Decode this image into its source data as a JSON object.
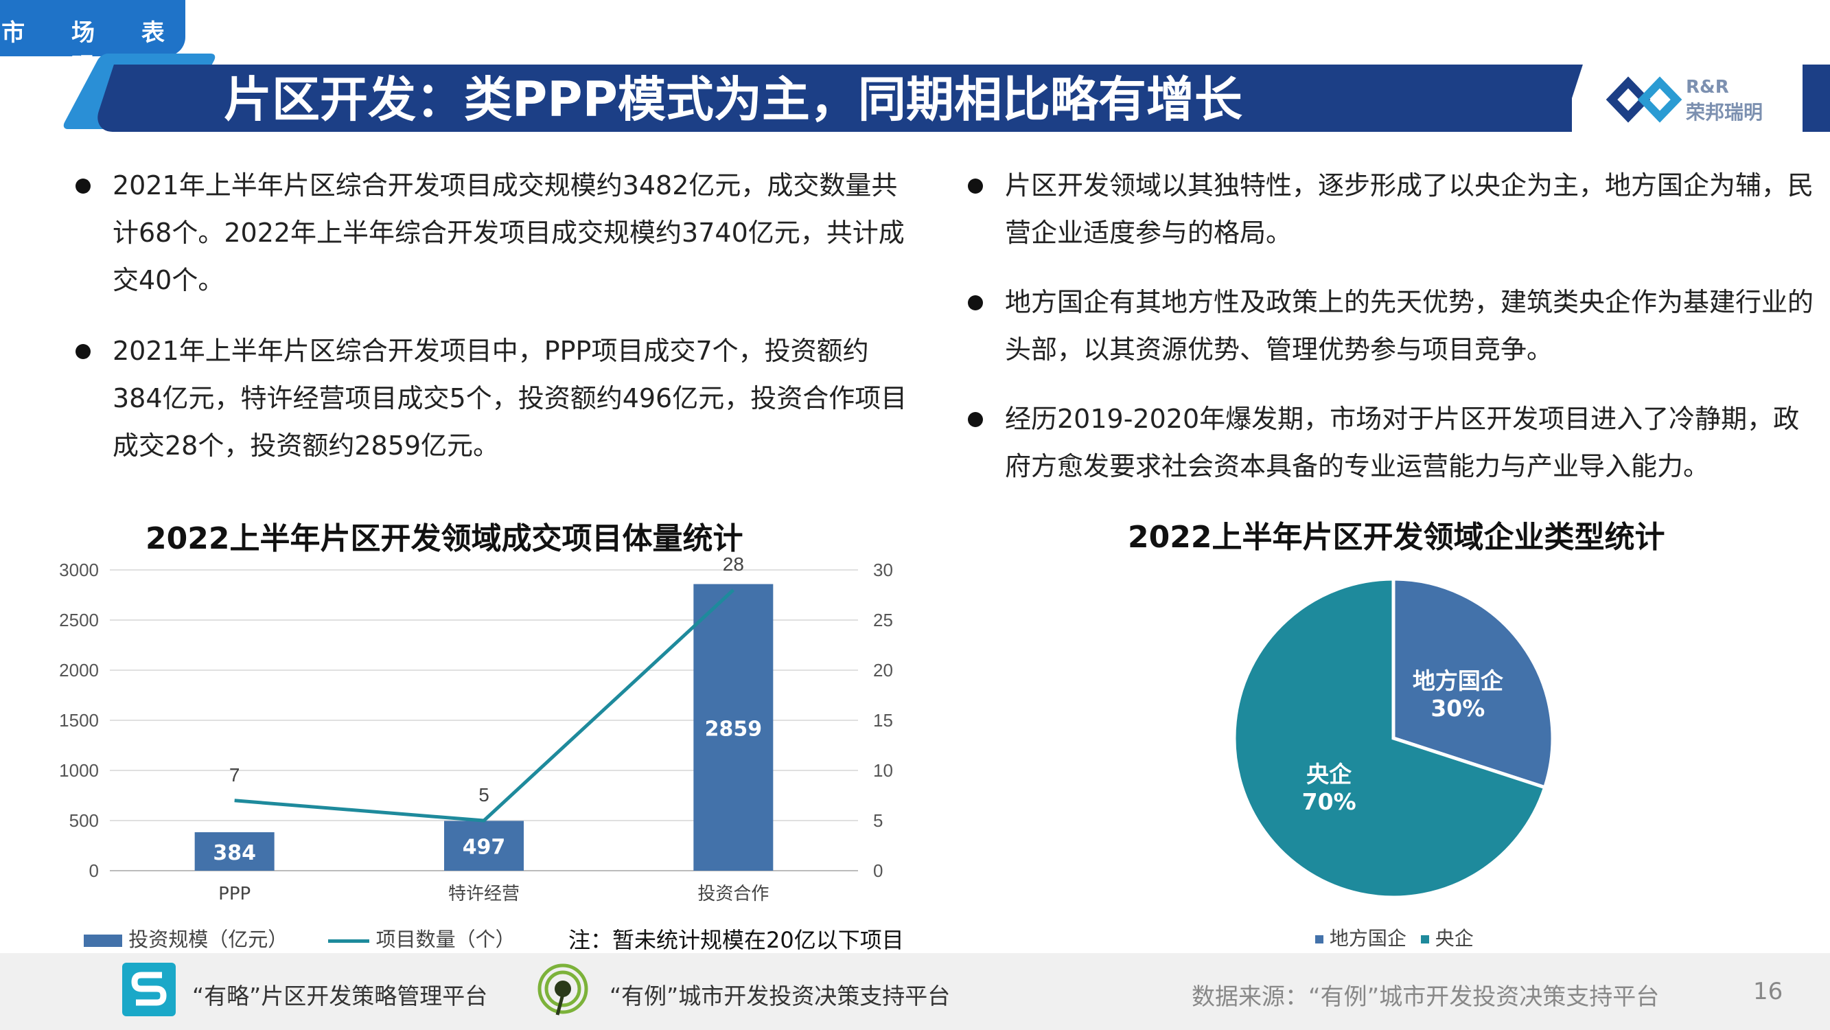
{
  "section_tag": "市 场 表 现",
  "title": "片区开发：类PPP模式为主，同期相比略有增长",
  "logo": {
    "en": "R&R",
    "cn": "荣邦瑞明"
  },
  "left_bullets": [
    "2021年上半年片区综合开发项目成交规模约3482亿元，成交数量共计68个。2022年上半年综合开发项目成交规模约3740亿元，共计成交40个。",
    "2021年上半年片区综合开发项目中，PPP项目成交7个，投资额约384亿元，特许经营项目成交5个，投资额约496亿元，投资合作项目成交28个，投资额约2859亿元。"
  ],
  "right_bullets": [
    "片区开发领域以其独特性，逐步形成了以央企为主，地方国企为辅，民营企业适度参与的格局。",
    "地方国企有其地方性及政策上的先天优势，建筑类央企作为基建行业的头部，以其资源优势、管理优势参与项目竞争。",
    "经历2019-2020年爆发期，市场对于片区开发项目进入了冷静期，政府方愈发要求社会资本具备的专业运营能力与产业导入能力。"
  ],
  "note": "注：暂未统计规模在20亿以下项目",
  "footer": {
    "platform1": "“有略”片区开发策略管理平台",
    "platform2": "“有例”城市开发投资决策支持平台",
    "source": "数据来源：“有例”城市开发投资决策支持平台",
    "page": "16"
  },
  "colors": {
    "bar": "#4372aa",
    "line": "#1e8a9c",
    "pie_local": "#4372aa",
    "pie_central": "#1e8a9c",
    "title_bar": "#1c3f86"
  },
  "chart_data": [
    {
      "type": "bar",
      "title": "2022上半年片区开发领域成交项目体量统计",
      "categories": [
        "PPP",
        "特许经营",
        "投资合作"
      ],
      "series": [
        {
          "name": "投资规模（亿元）",
          "type": "bar",
          "axis": "left",
          "values": [
            384,
            497,
            2859
          ]
        },
        {
          "name": "项目数量（个）",
          "type": "line",
          "axis": "right",
          "values": [
            7,
            5,
            28
          ]
        }
      ],
      "ylim_left": [
        0,
        3000
      ],
      "yticks_left": [
        "0",
        "500",
        "1000",
        "1500",
        "2000",
        "2500",
        "3000"
      ],
      "ylim_right": [
        0,
        30
      ],
      "yticks_right": [
        "0",
        "5",
        "10",
        "15",
        "20",
        "25",
        "30"
      ],
      "grid": true,
      "legend": "bottom-left"
    },
    {
      "type": "pie",
      "title": "2022上半年片区开发领域企业类型统计",
      "labels": [
        "地方国企",
        "央企"
      ],
      "values": [
        30,
        70
      ],
      "value_labels": [
        "30%",
        "70%"
      ],
      "legend": "bottom"
    }
  ]
}
